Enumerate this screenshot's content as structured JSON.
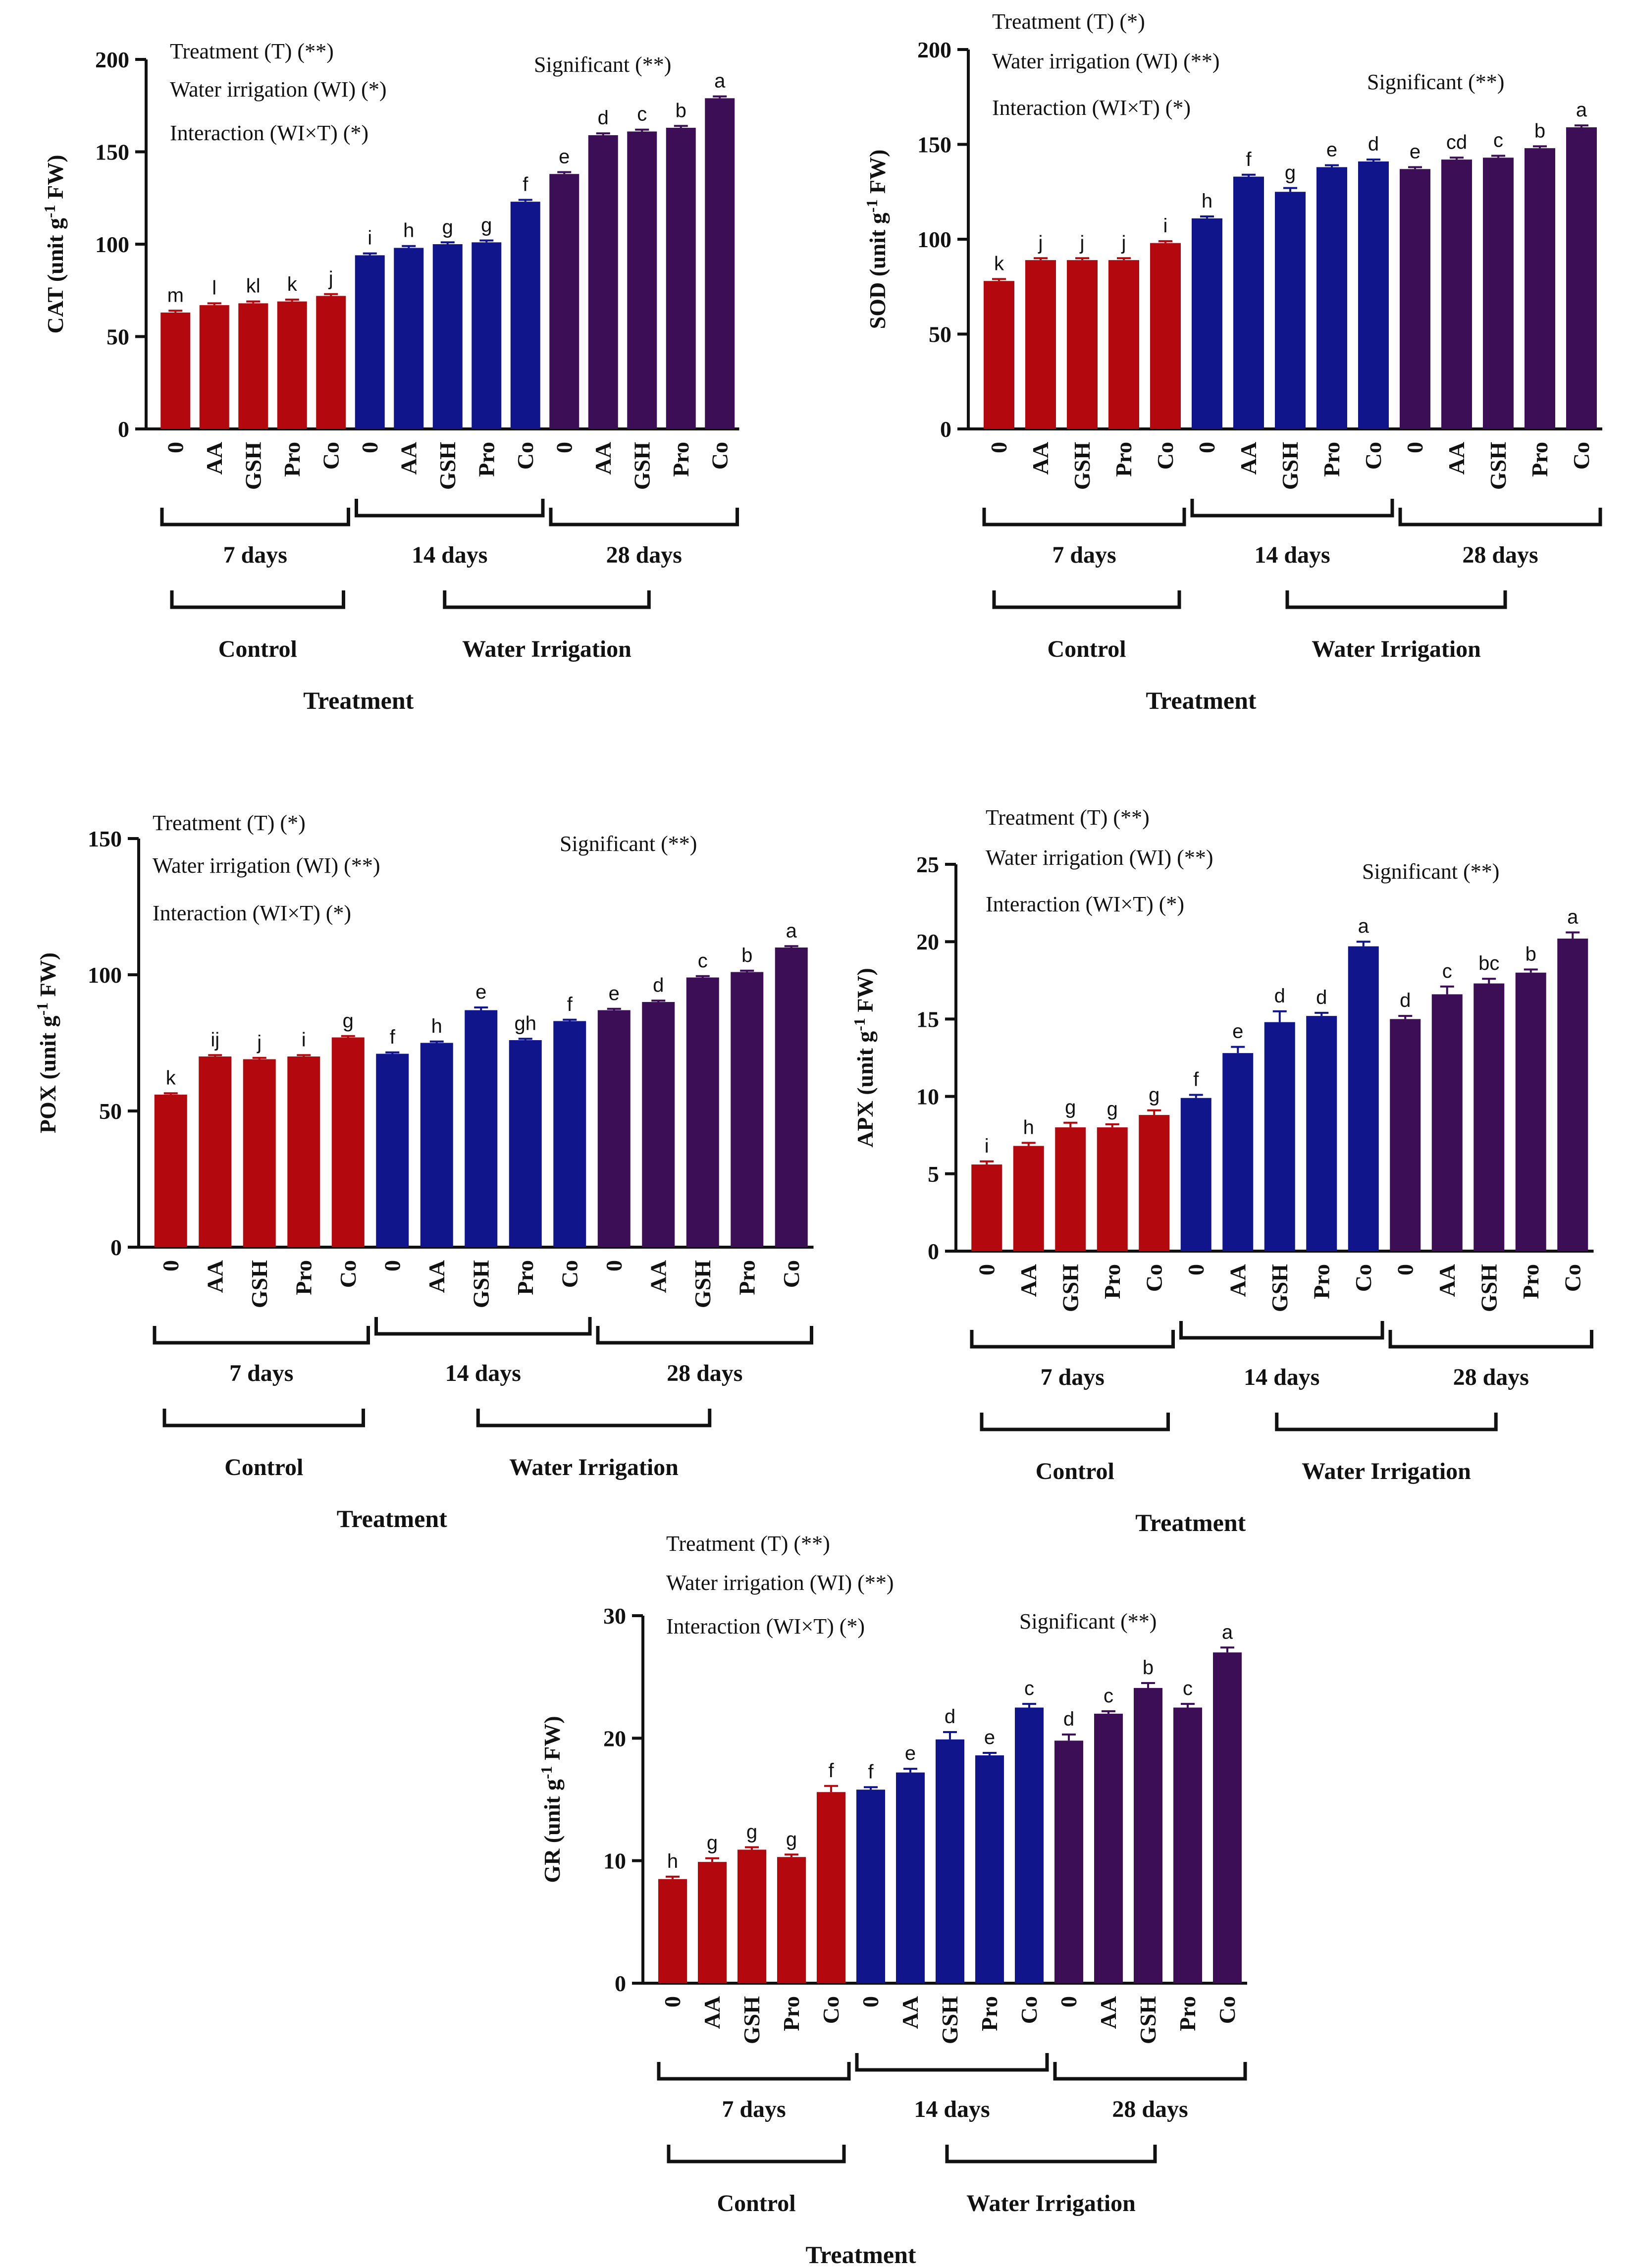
{
  "colors": {
    "control": "#B3080E",
    "d14": "#10158C",
    "d28": "#3B0E55",
    "axis": "#111111"
  },
  "chart_data": [
    {
      "type": "bar",
      "id": "cat",
      "ylabel_main": "CAT (unit g",
      "ylabel_sup": "-1",
      "ylabel_tail": " FW)",
      "ylim": [
        0,
        200
      ],
      "yticks": [
        0,
        50,
        100,
        150,
        200
      ],
      "categories": [
        "0",
        "AA",
        "GSH",
        "Pro",
        "Co"
      ],
      "groups": [
        "7 days",
        "14 days",
        "28 days"
      ],
      "super_groups": [
        "Control",
        "Water Irrigation"
      ],
      "xlabel": "Treatment",
      "stats": [
        "Treatment (T) (**)",
        "Water irrigation (WI) (*)",
        "Interaction (WI×T) (*)"
      ],
      "significance": "Significant (**)",
      "series": [
        {
          "name": "7 days",
          "color_key": "control",
          "values": [
            63,
            67,
            68,
            69,
            72
          ],
          "errors": [
            1,
            1,
            1,
            1,
            1
          ],
          "letters": [
            "m",
            "l",
            "kl",
            "k",
            "j"
          ]
        },
        {
          "name": "14 days",
          "color_key": "d14",
          "values": [
            94,
            98,
            100,
            101,
            123
          ],
          "errors": [
            1,
            1,
            1,
            1,
            1
          ],
          "letters": [
            "i",
            "h",
            "g",
            "g",
            "f"
          ]
        },
        {
          "name": "28 days",
          "color_key": "d28",
          "values": [
            138,
            159,
            161,
            163,
            179
          ],
          "errors": [
            1,
            1,
            1,
            1,
            1
          ],
          "letters": [
            "e",
            "d",
            "c",
            "b",
            "a"
          ]
        }
      ]
    },
    {
      "type": "bar",
      "id": "sod",
      "ylabel_main": "SOD (unit g",
      "ylabel_sup": "-1",
      "ylabel_tail": " FW)",
      "ylim": [
        0,
        200
      ],
      "yticks": [
        0,
        50,
        100,
        150,
        200
      ],
      "categories": [
        "0",
        "AA",
        "GSH",
        "Pro",
        "Co"
      ],
      "groups": [
        "7 days",
        "14 days",
        "28 days"
      ],
      "super_groups": [
        "Control",
        "Water Irrigation"
      ],
      "xlabel": "Treatment",
      "stats": [
        "Treatment (T) (*)",
        "Water irrigation (WI) (**)",
        "Interaction (WI×T) (*)"
      ],
      "significance": "Significant (**)",
      "series": [
        {
          "name": "7 days",
          "color_key": "control",
          "values": [
            78,
            89,
            89,
            89,
            98
          ],
          "errors": [
            1,
            1,
            1,
            1,
            1
          ],
          "letters": [
            "k",
            "j",
            "j",
            "j",
            "i"
          ]
        },
        {
          "name": "14 days",
          "color_key": "d14",
          "values": [
            111,
            133,
            125,
            138,
            141
          ],
          "errors": [
            1,
            1,
            2,
            1,
            1
          ],
          "letters": [
            "h",
            "f",
            "g",
            "e",
            "d"
          ]
        },
        {
          "name": "28 days",
          "color_key": "d28",
          "values": [
            137,
            142,
            143,
            148,
            159
          ],
          "errors": [
            1,
            1,
            1,
            1,
            1
          ],
          "letters": [
            "e",
            "cd",
            "c",
            "b",
            "a"
          ]
        }
      ]
    },
    {
      "type": "bar",
      "id": "pox",
      "ylabel_main": "POX (unit g",
      "ylabel_sup": "-1",
      "ylabel_tail": " FW)",
      "ylim": [
        0,
        150
      ],
      "yticks": [
        0,
        50,
        100,
        150
      ],
      "categories": [
        "0",
        "AA",
        "GSH",
        "Pro",
        "Co"
      ],
      "groups": [
        "7 days",
        "14 days",
        "28 days"
      ],
      "super_groups": [
        "Control",
        "Water Irrigation"
      ],
      "xlabel": "Treatment",
      "stats": [
        "Treatment (T) (*)",
        "Water irrigation (WI) (**)",
        "Interaction (WI×T) (*)"
      ],
      "significance": "Significant (**)",
      "series": [
        {
          "name": "7 days",
          "color_key": "control",
          "values": [
            56,
            70,
            69,
            70,
            77
          ],
          "errors": [
            0.5,
            0.5,
            0.5,
            0.5,
            0.5
          ],
          "letters": [
            "k",
            "ij",
            "j",
            "i",
            "g"
          ]
        },
        {
          "name": "14 days",
          "color_key": "d14",
          "values": [
            71,
            75,
            87,
            76,
            83
          ],
          "errors": [
            0.5,
            0.5,
            1,
            0.5,
            0.5
          ],
          "letters": [
            "f",
            "h",
            "e",
            "gh",
            "f"
          ]
        },
        {
          "name": "28 days",
          "color_key": "d28",
          "values": [
            87,
            90,
            99,
            101,
            110
          ],
          "errors": [
            0.5,
            0.5,
            0.5,
            0.5,
            0.5
          ],
          "letters": [
            "e",
            "d",
            "c",
            "b",
            "a"
          ]
        }
      ]
    },
    {
      "type": "bar",
      "id": "apx",
      "ylabel_main": "APX (unit g",
      "ylabel_sup": "-1",
      "ylabel_tail": " FW)",
      "ylim": [
        0,
        25
      ],
      "yticks": [
        0,
        5,
        10,
        15,
        20,
        25
      ],
      "categories": [
        "0",
        "AA",
        "GSH",
        "Pro",
        "Co"
      ],
      "groups": [
        "7 days",
        "14 days",
        "28 days"
      ],
      "super_groups": [
        "Control",
        "Water Irrigation"
      ],
      "xlabel": "Treatment",
      "stats": [
        "Treatment (T) (**)",
        "Water irrigation (WI) (**)",
        "Interaction (WI×T) (*)"
      ],
      "significance": "Significant (**)",
      "series": [
        {
          "name": "7 days",
          "color_key": "control",
          "values": [
            5.6,
            6.8,
            8.0,
            8.0,
            8.8
          ],
          "errors": [
            0.2,
            0.2,
            0.3,
            0.2,
            0.3
          ],
          "letters": [
            "i",
            "h",
            "g",
            "g",
            "g"
          ]
        },
        {
          "name": "14 days",
          "color_key": "d14",
          "values": [
            9.9,
            12.8,
            14.8,
            15.2,
            19.7
          ],
          "errors": [
            0.2,
            0.4,
            0.7,
            0.2,
            0.3
          ],
          "letters": [
            "f",
            "e",
            "d",
            "d",
            "a"
          ]
        },
        {
          "name": "28 days",
          "color_key": "d28",
          "values": [
            15.0,
            16.6,
            17.3,
            18.0,
            20.2
          ],
          "errors": [
            0.2,
            0.5,
            0.3,
            0.2,
            0.4
          ],
          "letters": [
            "d",
            "c",
            "bc",
            "b",
            "a"
          ]
        }
      ]
    },
    {
      "type": "bar",
      "id": "gr",
      "ylabel_main": "GR (unit g",
      "ylabel_sup": "-1",
      "ylabel_tail": " FW)",
      "ylim": [
        0,
        30
      ],
      "yticks": [
        0,
        10,
        20,
        30
      ],
      "categories": [
        "0",
        "AA",
        "GSH",
        "Pro",
        "Co"
      ],
      "groups": [
        "7 days",
        "14 days",
        "28 days"
      ],
      "super_groups": [
        "Control",
        "Water Irrigation"
      ],
      "xlabel": "Treatment",
      "stats": [
        "Treatment (T) (**)",
        "Water irrigation (WI) (**)",
        "Interaction (WI×T) (*)"
      ],
      "significance": "Significant (**)",
      "series": [
        {
          "name": "7 days",
          "color_key": "control",
          "values": [
            8.5,
            9.9,
            10.9,
            10.3,
            15.6
          ],
          "errors": [
            0.2,
            0.3,
            0.2,
            0.2,
            0.5
          ],
          "letters": [
            "h",
            "g",
            "g",
            "g",
            "f"
          ]
        },
        {
          "name": "14 days",
          "color_key": "d14",
          "values": [
            15.8,
            17.2,
            19.9,
            18.6,
            22.5
          ],
          "errors": [
            0.2,
            0.3,
            0.6,
            0.2,
            0.3
          ],
          "letters": [
            "f",
            "e",
            "d",
            "e",
            "c"
          ]
        },
        {
          "name": "28 days",
          "color_key": "d28",
          "values": [
            19.8,
            22.0,
            24.1,
            22.5,
            27.0
          ],
          "errors": [
            0.5,
            0.2,
            0.4,
            0.3,
            0.4
          ],
          "letters": [
            "d",
            "c",
            "b",
            "c",
            "a"
          ]
        }
      ]
    }
  ]
}
